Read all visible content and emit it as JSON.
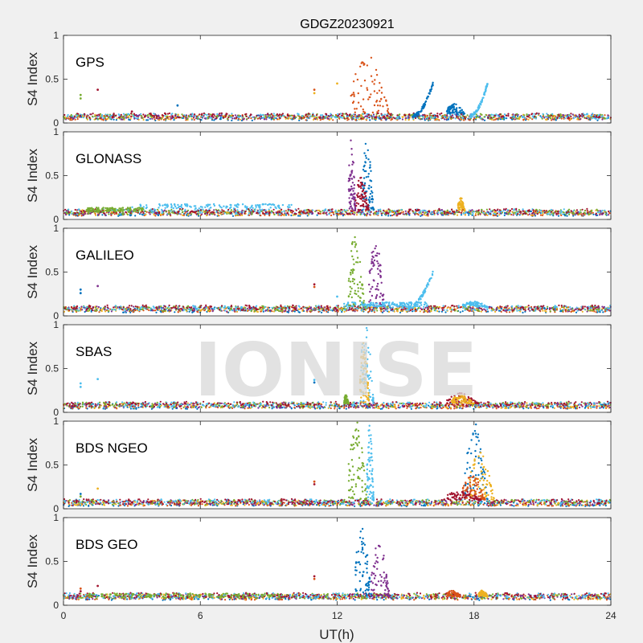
{
  "chart_data": {
    "type": "scatter",
    "title": "GDGZ20230921",
    "xlabel": "UT(h)",
    "ylabel": "S4 Index",
    "xlim": [
      0,
      24
    ],
    "ylim": [
      0,
      1
    ],
    "xticks": [
      "0",
      "6",
      "12",
      "18",
      "24"
    ],
    "yticks": [
      "0",
      "0.5",
      "1"
    ],
    "watermark": "IONISE",
    "colors": [
      "#0072BD",
      "#D95319",
      "#EDB120",
      "#7E2F8E",
      "#77AC30",
      "#4DBEEE",
      "#A2142F"
    ],
    "panels": [
      {
        "name": "GPS",
        "baseline": 0.07,
        "outliers": [
          [
            0.75,
            0.32,
            4
          ],
          [
            0.75,
            0.28,
            4
          ],
          [
            1.5,
            0.38,
            6
          ],
          [
            11.0,
            0.38,
            1
          ],
          [
            11.0,
            0.34,
            2
          ],
          [
            12.0,
            0.45,
            2
          ],
          [
            3.0,
            0.13,
            6
          ],
          [
            5.0,
            0.2,
            0
          ]
        ],
        "bursts": [
          {
            "color": 1,
            "x": [
              12.6,
              14.3
            ],
            "peak": 0.78
          },
          {
            "color": 0,
            "x": [
              15.3,
              16.2
            ],
            "peak": 0.45,
            "rising": true
          },
          {
            "color": 5,
            "x": [
              17.8,
              18.6
            ],
            "peak": 0.46,
            "rising": true
          },
          {
            "color": 0,
            "x": [
              16.8,
              17.6
            ],
            "peak": 0.22
          }
        ]
      },
      {
        "name": "GLONASS",
        "baseline": 0.08,
        "outliers": [],
        "bursts": [
          {
            "color": 3,
            "x": [
              12.5,
              12.8
            ],
            "peak": 0.95
          },
          {
            "color": 0,
            "x": [
              13.1,
              13.6
            ],
            "peak": 0.9
          },
          {
            "color": 6,
            "x": [
              12.8,
              13.4
            ],
            "peak": 0.5
          },
          {
            "color": 2,
            "x": [
              17.3,
              17.6
            ],
            "peak": 0.25
          },
          {
            "color": 5,
            "x": [
              3.0,
              10.0
            ],
            "peak": 0.18,
            "band": true
          },
          {
            "color": 4,
            "x": [
              1.0,
              3.5
            ],
            "peak": 0.14,
            "band": true
          }
        ]
      },
      {
        "name": "GALILEO",
        "baseline": 0.08,
        "outliers": [
          [
            0.75,
            0.3,
            0
          ],
          [
            0.75,
            0.26,
            0
          ],
          [
            1.5,
            0.34,
            3
          ],
          [
            11.0,
            0.36,
            6
          ],
          [
            11.0,
            0.33,
            1
          ],
          [
            12.0,
            0.22,
            5
          ]
        ],
        "bursts": [
          {
            "color": 4,
            "x": [
              12.5,
              13.2
            ],
            "peak": 0.95
          },
          {
            "color": 3,
            "x": [
              13.4,
              14.1
            ],
            "peak": 0.9
          },
          {
            "color": 5,
            "x": [
              15.0,
              16.2
            ],
            "peak": 0.5,
            "rising": true
          },
          {
            "color": 5,
            "x": [
              12.3,
              16.0
            ],
            "peak": 0.16,
            "band": true
          },
          {
            "color": 5,
            "x": [
              17.5,
              18.6
            ],
            "peak": 0.17
          }
        ]
      },
      {
        "name": "SBAS",
        "baseline": 0.08,
        "outliers": [
          [
            0.75,
            0.33,
            5
          ],
          [
            0.75,
            0.29,
            5
          ],
          [
            1.5,
            0.38,
            5
          ],
          [
            11.0,
            0.37,
            5
          ],
          [
            11.0,
            0.34,
            0
          ]
        ],
        "bursts": [
          {
            "color": 5,
            "x": [
              13.0,
              13.6
            ],
            "peak": 1.0
          },
          {
            "color": 2,
            "x": [
              13.0,
              13.4
            ],
            "peak": 0.85
          },
          {
            "color": 4,
            "x": [
              12.3,
              12.5
            ],
            "peak": 0.2
          },
          {
            "color": 6,
            "x": [
              16.8,
              18.2
            ],
            "peak": 0.22
          },
          {
            "color": 2,
            "x": [
              17.0,
              18.0
            ],
            "peak": 0.2
          }
        ]
      },
      {
        "name": "BDS NGEO",
        "baseline": 0.07,
        "outliers": [
          [
            0.75,
            0.17,
            0
          ],
          [
            0.75,
            0.14,
            4
          ],
          [
            1.5,
            0.23,
            2
          ],
          [
            11.0,
            0.31,
            1
          ],
          [
            11.0,
            0.28,
            6
          ]
        ],
        "bursts": [
          {
            "color": 4,
            "x": [
              12.5,
              13.3
            ],
            "peak": 1.0
          },
          {
            "color": 5,
            "x": [
              13.3,
              13.6
            ],
            "peak": 1.0
          },
          {
            "color": 0,
            "x": [
              17.6,
              18.6
            ],
            "peak": 1.0
          },
          {
            "color": 2,
            "x": [
              17.8,
              18.9
            ],
            "peak": 0.65
          },
          {
            "color": 1,
            "x": [
              17.5,
              18.5
            ],
            "peak": 0.4
          },
          {
            "color": 6,
            "x": [
              16.8,
              18.3
            ],
            "peak": 0.22
          }
        ]
      },
      {
        "name": "BDS GEO",
        "baseline": 0.1,
        "outliers": [
          [
            0.75,
            0.19,
            1
          ],
          [
            0.75,
            0.16,
            6
          ],
          [
            1.5,
            0.22,
            6
          ],
          [
            11.0,
            0.33,
            6
          ],
          [
            11.0,
            0.3,
            1
          ]
        ],
        "bursts": [
          {
            "color": 0,
            "x": [
              12.8,
              13.5
            ],
            "peak": 0.93
          },
          {
            "color": 3,
            "x": [
              13.5,
              14.3
            ],
            "peak": 0.72
          },
          {
            "color": 1,
            "x": [
              16.8,
              17.4
            ],
            "peak": 0.17
          },
          {
            "color": 2,
            "x": [
              18.2,
              18.6
            ],
            "peak": 0.17
          },
          {
            "color": 4,
            "x": [
              1.0,
              9.5
            ],
            "peak": 0.14,
            "band": true
          }
        ]
      }
    ]
  }
}
